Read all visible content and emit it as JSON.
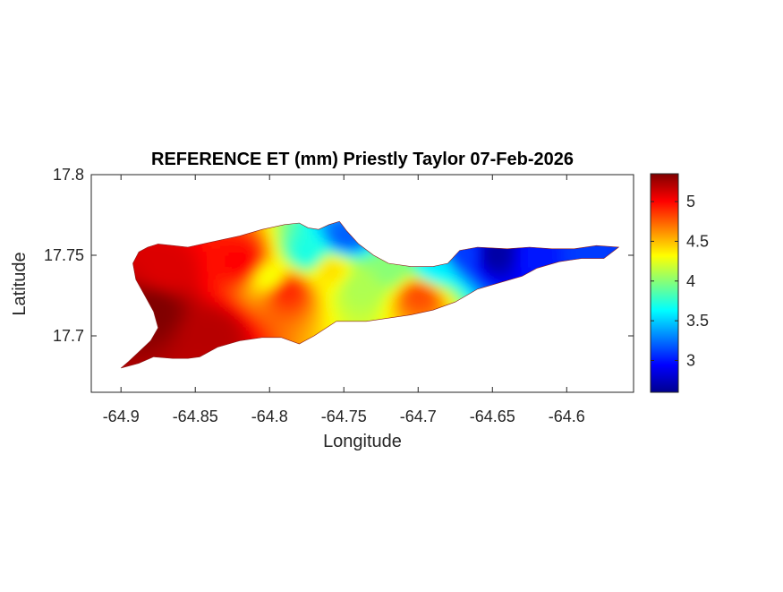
{
  "chart_data": {
    "type": "heatmap",
    "title": "REFERENCE ET (mm) Priestly Taylor 07-Feb-2026",
    "xlabel": "Longitude",
    "ylabel": "Latitude",
    "xlim": [
      -64.92,
      -64.555
    ],
    "ylim": [
      17.665,
      17.8
    ],
    "xticks": [
      -64.9,
      -64.85,
      -64.8,
      -64.75,
      -64.7,
      -64.65,
      -64.6
    ],
    "xtick_labels": [
      "-64.9",
      "-64.85",
      "-64.8",
      "-64.75",
      "-64.7",
      "-64.65",
      "-64.6"
    ],
    "yticks": [
      17.7,
      17.75,
      17.8
    ],
    "ytick_labels": [
      "17.7",
      "17.75",
      "17.8"
    ],
    "colorbar": {
      "range": [
        2.6,
        5.35
      ],
      "ticks": [
        3,
        3.5,
        4,
        4.5,
        5
      ],
      "tick_labels": [
        "3",
        "3.5",
        "4",
        "4.5",
        "5"
      ],
      "colormap": "jet"
    },
    "grid": false,
    "island_outline": [
      [
        -64.9,
        17.68
      ],
      [
        -64.895,
        17.684
      ],
      [
        -64.888,
        17.69
      ],
      [
        -64.88,
        17.697
      ],
      [
        -64.875,
        17.705
      ],
      [
        -64.878,
        17.715
      ],
      [
        -64.884,
        17.725
      ],
      [
        -64.89,
        17.735
      ],
      [
        -64.892,
        17.745
      ],
      [
        -64.888,
        17.752
      ],
      [
        -64.882,
        17.755
      ],
      [
        -64.875,
        17.757
      ],
      [
        -64.865,
        17.756
      ],
      [
        -64.855,
        17.755
      ],
      [
        -64.84,
        17.758
      ],
      [
        -64.82,
        17.762
      ],
      [
        -64.805,
        17.766
      ],
      [
        -64.79,
        17.769
      ],
      [
        -64.78,
        17.77
      ],
      [
        -64.774,
        17.767
      ],
      [
        -64.767,
        17.766
      ],
      [
        -64.76,
        17.769
      ],
      [
        -64.753,
        17.771
      ],
      [
        -64.748,
        17.765
      ],
      [
        -64.74,
        17.757
      ],
      [
        -64.73,
        17.75
      ],
      [
        -64.72,
        17.745
      ],
      [
        -64.705,
        17.743
      ],
      [
        -64.69,
        17.743
      ],
      [
        -64.68,
        17.745
      ],
      [
        -64.672,
        17.753
      ],
      [
        -64.66,
        17.755
      ],
      [
        -64.64,
        17.754
      ],
      [
        -64.625,
        17.755
      ],
      [
        -64.61,
        17.754
      ],
      [
        -64.595,
        17.754
      ],
      [
        -64.58,
        17.756
      ],
      [
        -64.565,
        17.755
      ],
      [
        -64.575,
        17.748
      ],
      [
        -64.59,
        17.748
      ],
      [
        -64.605,
        17.746
      ],
      [
        -64.62,
        17.742
      ],
      [
        -64.63,
        17.737
      ],
      [
        -64.645,
        17.733
      ],
      [
        -64.66,
        17.729
      ],
      [
        -64.675,
        17.721
      ],
      [
        -64.69,
        17.716
      ],
      [
        -64.705,
        17.713
      ],
      [
        -64.72,
        17.711
      ],
      [
        -64.735,
        17.709
      ],
      [
        -64.755,
        17.709
      ],
      [
        -64.77,
        17.7
      ],
      [
        -64.78,
        17.695
      ],
      [
        -64.792,
        17.699
      ],
      [
        -64.805,
        17.699
      ],
      [
        -64.82,
        17.697
      ],
      [
        -64.835,
        17.693
      ],
      [
        -64.847,
        17.687
      ],
      [
        -64.855,
        17.686
      ],
      [
        -64.865,
        17.686
      ],
      [
        -64.878,
        17.687
      ],
      [
        -64.888,
        17.683
      ],
      [
        -64.9,
        17.68
      ]
    ],
    "et_value_samples": [
      {
        "lon": -64.88,
        "lat": 17.715,
        "value": 5.35
      },
      {
        "lon": -64.87,
        "lat": 17.74,
        "value": 5.1
      },
      {
        "lon": -64.84,
        "lat": 17.7,
        "value": 5.2
      },
      {
        "lon": -64.82,
        "lat": 17.745,
        "value": 5.0
      },
      {
        "lon": -64.8,
        "lat": 17.735,
        "value": 4.3
      },
      {
        "lon": -64.79,
        "lat": 17.728,
        "value": 4.9
      },
      {
        "lon": -64.775,
        "lat": 17.75,
        "value": 3.7
      },
      {
        "lon": -64.76,
        "lat": 17.74,
        "value": 4.4
      },
      {
        "lon": -64.75,
        "lat": 17.76,
        "value": 3.2
      },
      {
        "lon": -64.74,
        "lat": 17.73,
        "value": 4.1
      },
      {
        "lon": -64.72,
        "lat": 17.74,
        "value": 4.0
      },
      {
        "lon": -64.7,
        "lat": 17.725,
        "value": 4.8
      },
      {
        "lon": -64.69,
        "lat": 17.74,
        "value": 3.6
      },
      {
        "lon": -64.67,
        "lat": 17.75,
        "value": 3.1
      },
      {
        "lon": -64.65,
        "lat": 17.75,
        "value": 2.7
      },
      {
        "lon": -64.62,
        "lat": 17.748,
        "value": 3.0
      },
      {
        "lon": -64.59,
        "lat": 17.751,
        "value": 3.1
      }
    ]
  }
}
